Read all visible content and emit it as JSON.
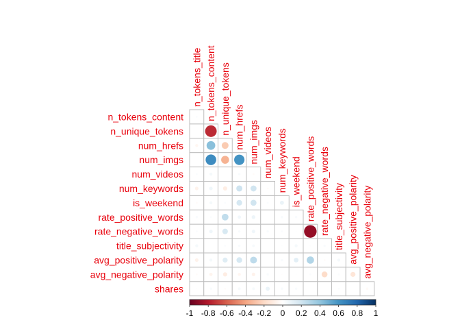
{
  "chart_data": {
    "type": "heatmap",
    "subtype": "correlation-matrix-lower-triangle-circles",
    "title": "",
    "diagonal_shown": false,
    "variables": [
      "n_tokens_title",
      "n_tokens_content",
      "n_unique_tokens",
      "num_hrefs",
      "num_imgs",
      "num_videos",
      "num_keywords",
      "is_weekend",
      "rate_positive_words",
      "rate_negative_words",
      "title_subjectivity",
      "avg_positive_polarity",
      "avg_negative_polarity",
      "shares"
    ],
    "column_labels": [
      "n_tokens_title",
      "n_tokens_content",
      "n_unique_tokens",
      "num_hrefs",
      "num_imgs",
      "num_videos",
      "num_keywords",
      "is_weekend",
      "rate_positive_words",
      "rate_negative_words",
      "title_subjectivity",
      "avg_positive_polarity",
      "avg_negative_polarity"
    ],
    "row_labels": [
      "n_tokens_content",
      "n_unique_tokens",
      "num_hrefs",
      "num_imgs",
      "num_videos",
      "num_keywords",
      "is_weekend",
      "rate_positive_words",
      "rate_negative_words",
      "title_subjectivity",
      "avg_positive_polarity",
      "avg_negative_polarity",
      "shares"
    ],
    "correlations": [
      [
        0.02
      ],
      [
        0.0,
        -0.75
      ],
      [
        -0.05,
        0.42,
        -0.26
      ],
      [
        0.0,
        0.63,
        -0.35,
        0.6
      ],
      [
        0.02,
        0.05,
        0.0,
        0.03,
        -0.02
      ],
      [
        -0.07,
        0.07,
        -0.1,
        0.21,
        0.2,
        -0.02
      ],
      [
        -0.02,
        0.05,
        0.02,
        0.18,
        0.2,
        0.02,
        0.09
      ],
      [
        0.03,
        0.02,
        0.25,
        0.06,
        0.08,
        0.0,
        0.03,
        0.03
      ],
      [
        0.02,
        0.07,
        0.17,
        0.03,
        0.07,
        0.03,
        0.02,
        0.01,
        -0.88
      ],
      [
        0.05,
        0.0,
        0.02,
        0.03,
        0.04,
        0.0,
        0.01,
        0.05,
        0.01,
        0.03
      ],
      [
        -0.07,
        0.05,
        0.14,
        0.18,
        0.26,
        0.0,
        0.03,
        0.12,
        0.3,
        -0.02,
        0.05
      ],
      [
        -0.02,
        -0.06,
        -0.1,
        -0.05,
        -0.07,
        0.03,
        -0.01,
        0.01,
        0.02,
        -0.19,
        0.02,
        -0.14
      ],
      [
        0.01,
        0.03,
        -0.02,
        0.04,
        0.04,
        0.09,
        0.03,
        0.03,
        0.0,
        0.0,
        0.02,
        0.0,
        -0.03
      ]
    ],
    "colorbar": {
      "range": [
        -1,
        1
      ],
      "ticks": [
        "-1",
        "-0.8",
        "-0.6",
        "-0.4",
        "-0.2",
        "0",
        "0.2",
        "0.4",
        "0.6",
        "0.8",
        "1"
      ],
      "colors": [
        "#67001F",
        "#B2182B",
        "#D6604D",
        "#F4A582",
        "#FDDBC7",
        "#FFFFFF",
        "#D1E5F0",
        "#92C5DE",
        "#4393C3",
        "#2166AC",
        "#053061"
      ]
    },
    "label_color": "#E8000B",
    "grid_color": "#BEBEBE"
  }
}
